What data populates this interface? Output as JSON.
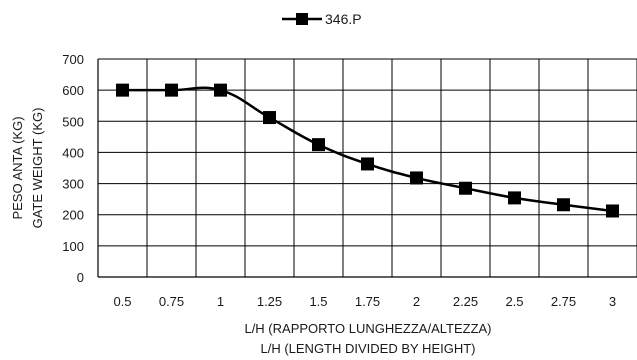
{
  "chart_data": {
    "type": "line",
    "legend": {
      "position": "top-center",
      "entries": [
        "346.P"
      ]
    },
    "x": [
      "0.5",
      "0.75",
      "1",
      "1.25",
      "1.5",
      "1.75",
      "2",
      "2.25",
      "2.5",
      "2.75",
      "3"
    ],
    "series": [
      {
        "name": "346.P",
        "values": [
          600,
          600,
          600,
          512,
          425,
          363,
          318,
          285,
          254,
          232,
          212
        ]
      }
    ],
    "xlabel": [
      "L/H (RAPPORTO LUNGHEZZA/ALTEZZA)",
      "L/H (LENGTH DIVIDED BY HEIGHT)"
    ],
    "ylabel": [
      "PESO ANTA (KG)",
      "GATE WEIGHT (KG)"
    ],
    "ylim": [
      0,
      700
    ],
    "yticks": [
      "0",
      "100",
      "200",
      "300",
      "400",
      "500",
      "600",
      "700"
    ],
    "grid": true,
    "colors": {
      "line": "#000000",
      "grid": "#000000",
      "marker": "#000000"
    }
  }
}
